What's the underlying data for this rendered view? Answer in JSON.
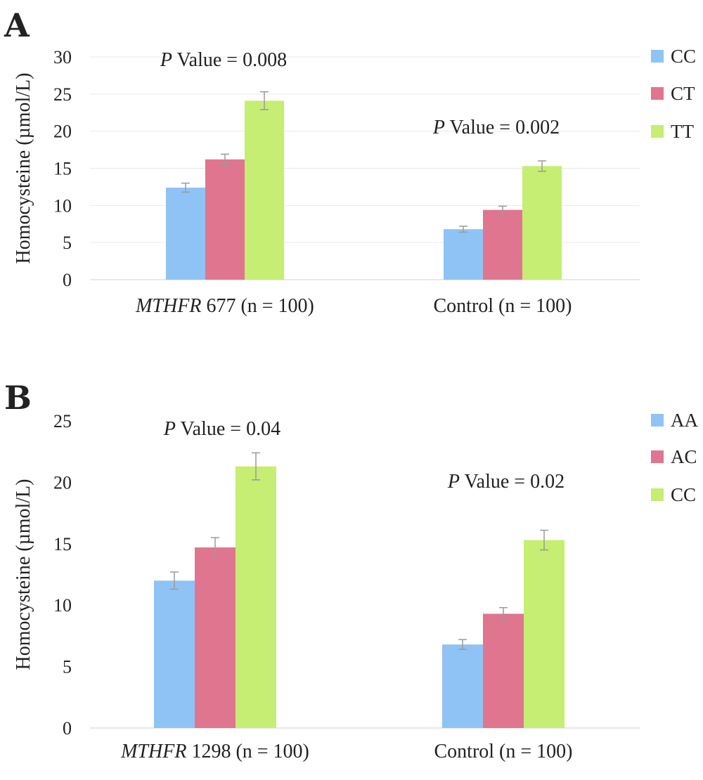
{
  "chart_data": [
    {
      "panel": "A",
      "type": "bar",
      "ylabel": "Homocysteine (µmol/L)",
      "ylim": [
        0,
        30
      ],
      "yticks": [
        0,
        5,
        10,
        15,
        20,
        25,
        30
      ],
      "grid": true,
      "legend_position": "right",
      "categories": [
        {
          "prefix": "MTHFR",
          "rest": " 677 (n = 100)"
        },
        {
          "prefix": "",
          "rest": "Control (n = 100)"
        }
      ],
      "pvalues": [
        {
          "p": "P",
          "text": " Value = 0.008"
        },
        {
          "p": "P",
          "text": " Value = 0.002"
        }
      ],
      "series": [
        {
          "name": "CC",
          "color": "#8fc3f5",
          "values": [
            12.4,
            6.8
          ],
          "errors": [
            0.6,
            0.4
          ]
        },
        {
          "name": "CT",
          "color": "#e07590",
          "values": [
            16.2,
            9.4
          ],
          "errors": [
            0.7,
            0.5
          ]
        },
        {
          "name": "TT",
          "color": "#c5ee72",
          "values": [
            24.1,
            15.3
          ],
          "errors": [
            1.2,
            0.7
          ]
        }
      ]
    },
    {
      "panel": "B",
      "type": "bar",
      "ylabel": "Homocysteine (µmol/L)",
      "ylim": [
        0,
        25
      ],
      "yticks": [
        0,
        5,
        10,
        15,
        20,
        25
      ],
      "grid": false,
      "legend_position": "right",
      "categories": [
        {
          "prefix": "MTHFR",
          "rest": " 1298 (n = 100)"
        },
        {
          "prefix": "",
          "rest": "Control (n = 100)"
        }
      ],
      "pvalues": [
        {
          "p": "P",
          "text": " Value = 0.04"
        },
        {
          "p": "P",
          "text": " Value = 0.02"
        }
      ],
      "series": [
        {
          "name": "AA",
          "color": "#8fc3f5",
          "values": [
            12.0,
            6.8
          ],
          "errors": [
            0.7,
            0.4
          ]
        },
        {
          "name": "AC",
          "color": "#e07590",
          "values": [
            14.7,
            9.3
          ],
          "errors": [
            0.8,
            0.5
          ]
        },
        {
          "name": "CC",
          "color": "#c5ee72",
          "values": [
            21.3,
            15.3
          ],
          "errors": [
            1.1,
            0.8
          ]
        }
      ]
    }
  ]
}
